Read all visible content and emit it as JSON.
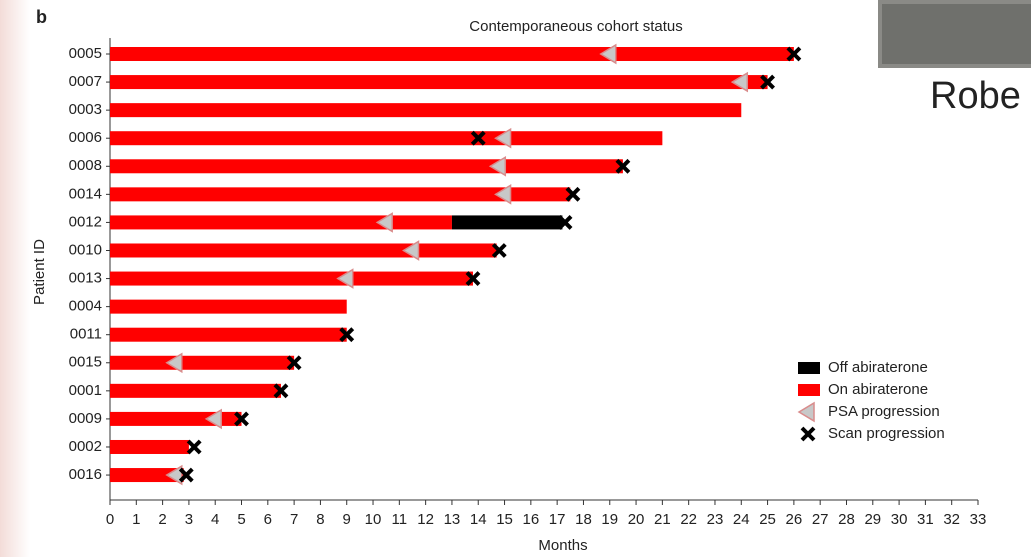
{
  "panel_label": "b",
  "photo_caption": "Robe",
  "chart_data": {
    "type": "swimmer",
    "title": "Contemporaneous cohort status",
    "xlabel": "Months",
    "ylabel": "Patient ID",
    "categories": [
      "0005",
      "0007",
      "0003",
      "0006",
      "0008",
      "0014",
      "0012",
      "0010",
      "0013",
      "0004",
      "0011",
      "0015",
      "0001",
      "0009",
      "0002",
      "0016"
    ],
    "series": [
      {
        "name": "Off abiraterone",
        "color": "#000000",
        "kind": "bar",
        "stacked": true,
        "values": [
          null,
          null,
          null,
          null,
          null,
          null,
          4.2,
          null,
          null,
          null,
          null,
          null,
          null,
          null,
          null,
          null
        ]
      },
      {
        "name": "On abiraterone",
        "color": "#ff0000",
        "kind": "bar",
        "values": [
          26,
          25,
          24,
          21,
          19.5,
          17.5,
          13,
          14.7,
          13.8,
          9,
          9,
          7,
          6.5,
          5,
          3,
          2.8
        ]
      },
      {
        "name": "PSA progression",
        "color": "#c8c8c8",
        "kind": "triangle",
        "values": [
          19,
          24,
          null,
          15,
          14.8,
          15,
          10.5,
          11.5,
          9,
          null,
          null,
          2.5,
          null,
          4,
          null,
          2.5
        ]
      },
      {
        "name": "Scan progression",
        "color": "#000000",
        "kind": "cross",
        "values": [
          26,
          25,
          null,
          14,
          19.5,
          17.6,
          17.3,
          14.8,
          13.8,
          null,
          9,
          7,
          6.5,
          5,
          3.2,
          2.9
        ]
      }
    ],
    "xlim": [
      0,
      33
    ],
    "xticks": [
      0,
      1,
      2,
      3,
      4,
      5,
      6,
      7,
      8,
      9,
      10,
      11,
      12,
      13,
      14,
      15,
      16,
      17,
      18,
      19,
      20,
      21,
      22,
      23,
      24,
      25,
      26,
      27,
      28,
      29,
      30,
      31,
      32,
      33
    ]
  }
}
